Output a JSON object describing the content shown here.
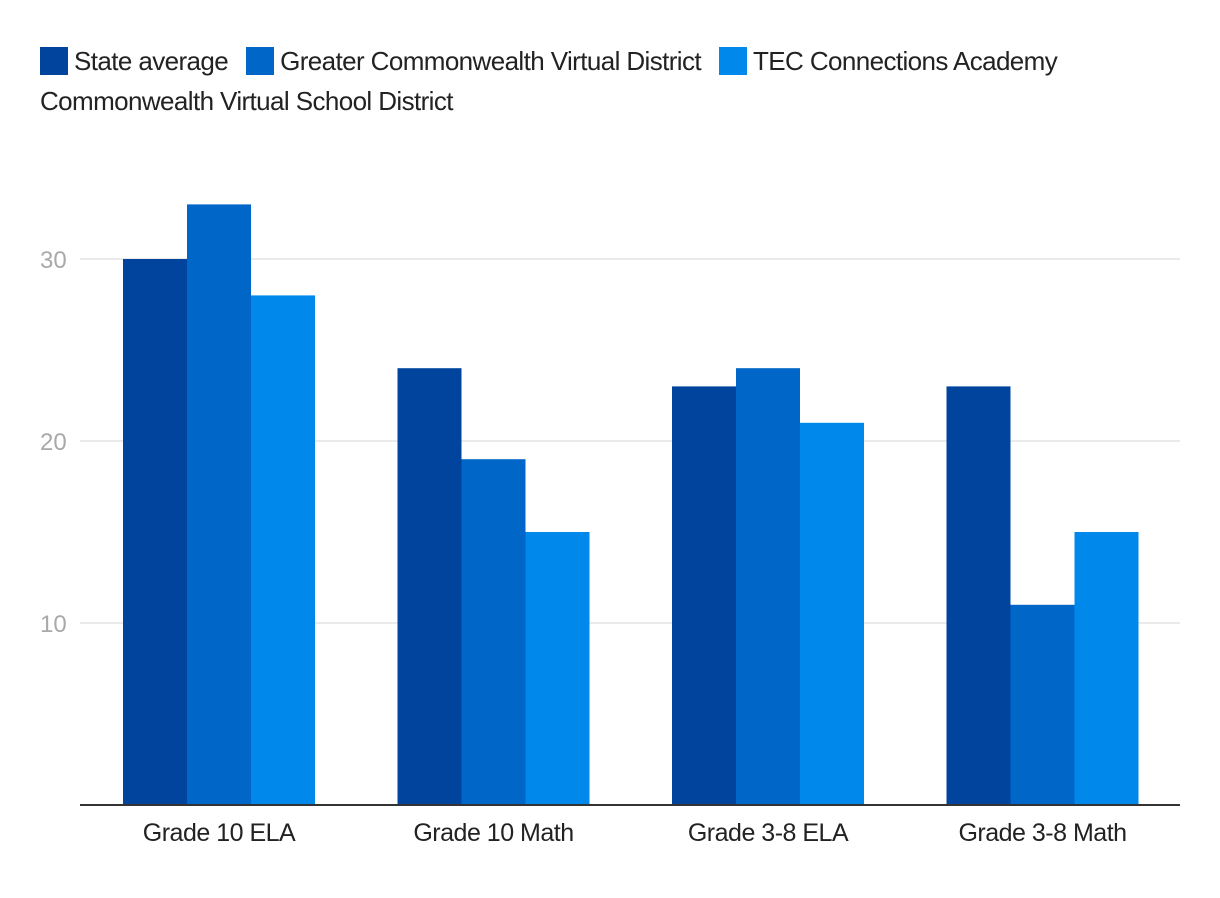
{
  "chart_data": {
    "type": "bar",
    "title": "",
    "xlabel": "",
    "ylabel": "",
    "categories": [
      "Grade 10 ELA",
      "Grade 10 Math",
      "Grade 3-8 ELA",
      "Grade 3-8 Math"
    ],
    "series": [
      {
        "name": "State average",
        "color": "#00449e",
        "values": [
          30,
          24,
          23,
          23
        ]
      },
      {
        "name": "Greater Commonwealth Virtual District",
        "color": "#0066c7",
        "values": [
          33,
          19,
          24,
          11
        ]
      },
      {
        "name": "TEC Connections Academy",
        "color": "#0089eb",
        "values": [
          28,
          15,
          21,
          15
        ]
      }
    ],
    "legend_extra": "Commonwealth Virtual School District",
    "ylim": [
      0,
      35
    ],
    "yticks": [
      10,
      20,
      30
    ],
    "grid": true,
    "legend_position": "top-left",
    "gridline_color": "#e3e3e3",
    "axis_color": "#333333"
  }
}
